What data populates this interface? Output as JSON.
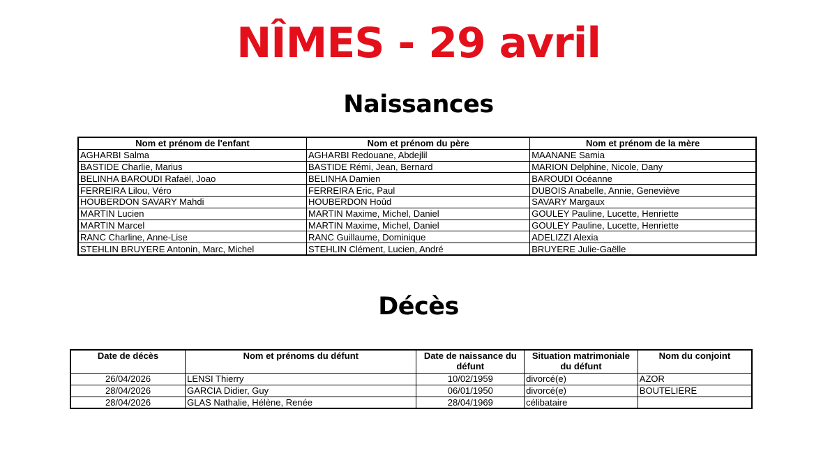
{
  "title": "NÎMES - 29 avril",
  "title_color": "#e3101c",
  "naissances": {
    "heading": "Naissances",
    "columns": [
      "Nom et prénom de l'enfant",
      "Nom et prénom du père",
      "Nom et prénom de la mère"
    ],
    "rows": [
      [
        "AGHARBI Salma",
        "AGHARBI Redouane, Abdejlil",
        "MAANANE Samia"
      ],
      [
        "BASTIDE Charlie, Marius",
        "BASTIDE Rémi, Jean, Bernard",
        "MARION Delphine, Nicole, Dany"
      ],
      [
        "BELINHA BAROUDI Rafaël, Joao",
        "BELINHA Damien",
        "BAROUDI Océanne"
      ],
      [
        "FERREIRA Lilou, Véro",
        "FERREIRA Eric, Paul",
        "DUBOIS Anabelle, Annie, Geneviève"
      ],
      [
        "HOUBERDON SAVARY Mahdi",
        "HOUBERDON Hoûd",
        "SAVARY Margaux"
      ],
      [
        "MARTIN Lucien",
        "MARTIN Maxime, Michel, Daniel",
        "GOULEY Pauline, Lucette, Henriette"
      ],
      [
        "MARTIN Marcel",
        "MARTIN Maxime, Michel, Daniel",
        "GOULEY Pauline, Lucette, Henriette"
      ],
      [
        "RANC Charline, Anne-Lise",
        "RANC Guillaume, Dominique",
        "ADELIZZI Alexia"
      ],
      [
        "STEHLIN BRUYERE Antonin, Marc, Michel",
        "STEHLIN Clément, Lucien, André",
        "BRUYERE Julie-Gaëlle"
      ]
    ]
  },
  "deces": {
    "heading": "Décès",
    "columns": [
      "Date de décès",
      "Nom et prénoms du défunt",
      "Date de naissance du défunt",
      "Situation matrimoniale du défunt",
      "Nom du conjoint"
    ],
    "rows": [
      [
        "26/04/2026",
        "LENSI Thierry",
        "10/02/1959",
        "divorcé(e)",
        "AZOR"
      ],
      [
        "28/04/2026",
        "GARCIA Didier, Guy",
        "06/01/1950",
        "divorcé(e)",
        "BOUTELIERE"
      ],
      [
        "28/04/2026",
        "GLAS Nathalie, Hélène, Renée",
        "28/04/1969",
        "célibataire",
        ""
      ]
    ]
  }
}
